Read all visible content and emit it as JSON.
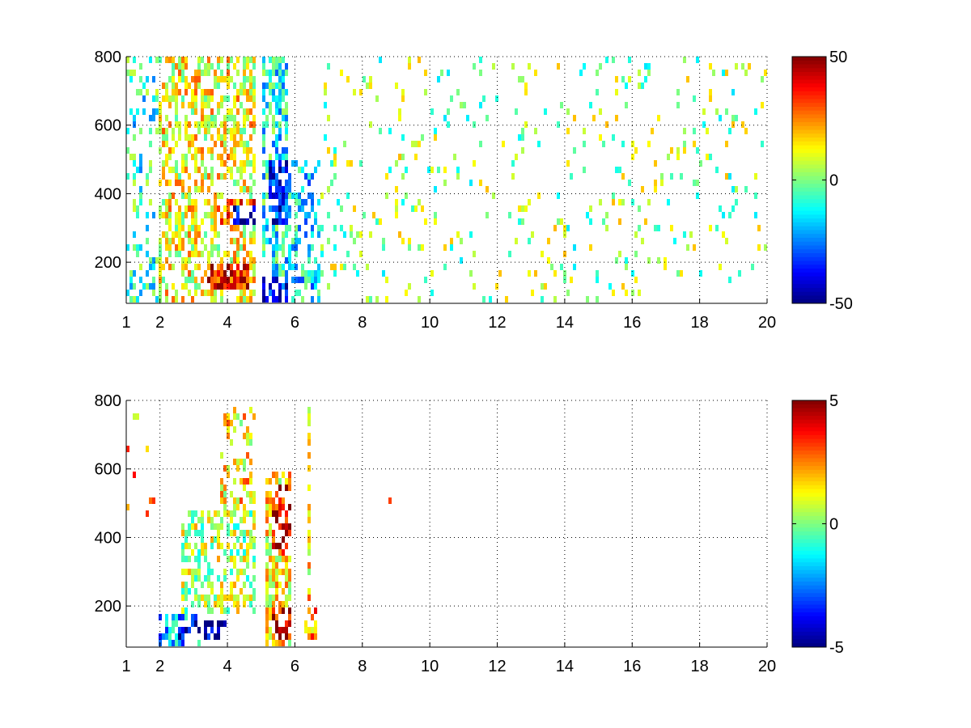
{
  "chart_data": [
    {
      "type": "heatmap",
      "title": "",
      "xlabel": "",
      "ylabel": "",
      "xlim": [
        1,
        20
      ],
      "ylim": [
        80,
        800
      ],
      "x_ticks": [
        1,
        2,
        4,
        6,
        8,
        10,
        12,
        14,
        16,
        18,
        20
      ],
      "y_ticks": [
        200,
        400,
        600,
        800
      ],
      "grid": true,
      "colorbar": {
        "placement": "right",
        "range": [
          -50,
          50
        ],
        "ticks": [
          -50,
          0,
          50
        ]
      },
      "colormap": "jet",
      "regions": [
        {
          "x": [
            1,
            2
          ],
          "y": [
            80,
            800
          ],
          "value": -8,
          "density": 0.25
        },
        {
          "x": [
            2,
            3.2
          ],
          "y": [
            80,
            220
          ],
          "value": 32,
          "density": 0.85
        },
        {
          "x": [
            2.4,
            3.6
          ],
          "y": [
            240,
            320
          ],
          "value": 30,
          "density": 0.85
        },
        {
          "x": [
            2,
            4.8
          ],
          "y": [
            80,
            800
          ],
          "value": 12,
          "density": 0.55
        },
        {
          "x": [
            3.4,
            4.6
          ],
          "y": [
            120,
            200
          ],
          "value": 38,
          "density": 0.85
        },
        {
          "x": [
            3.6,
            4.8
          ],
          "y": [
            300,
            380
          ],
          "value": 28,
          "density": 0.75
        },
        {
          "x": [
            4.2,
            4.8
          ],
          "y": [
            300,
            360
          ],
          "value": -40,
          "density": 0.7
        },
        {
          "x": [
            5,
            5.8
          ],
          "y": [
            80,
            800
          ],
          "value": -12,
          "density": 0.6
        },
        {
          "x": [
            5.2,
            5.9
          ],
          "y": [
            300,
            500
          ],
          "value": -35,
          "density": 0.7
        },
        {
          "x": [
            5,
            5.8
          ],
          "y": [
            90,
            160
          ],
          "value": -38,
          "density": 0.7
        },
        {
          "x": [
            5.8,
            6.8
          ],
          "y": [
            80,
            500
          ],
          "value": -15,
          "density": 0.4
        },
        {
          "x": [
            6.8,
            20
          ],
          "y": [
            80,
            800
          ],
          "value": 2,
          "density": 0.08
        }
      ]
    },
    {
      "type": "heatmap",
      "title": "",
      "xlabel": "",
      "ylabel": "",
      "xlim": [
        1,
        20
      ],
      "ylim": [
        80,
        800
      ],
      "x_ticks": [
        1,
        2,
        4,
        6,
        8,
        10,
        12,
        14,
        16,
        18,
        20
      ],
      "y_ticks": [
        200,
        400,
        600,
        800
      ],
      "grid": true,
      "colorbar": {
        "placement": "right",
        "range": [
          -5,
          5
        ],
        "ticks": [
          -5,
          0,
          5
        ]
      },
      "colormap": "jet",
      "regions": [
        {
          "x": [
            1,
            1.9
          ],
          "y": [
            100,
            800
          ],
          "value": 2,
          "density": 0.03
        },
        {
          "x": [
            2,
            3.2
          ],
          "y": [
            80,
            180
          ],
          "value": -2,
          "density": 0.7
        },
        {
          "x": [
            2.5,
            4
          ],
          "y": [
            100,
            150
          ],
          "value": -4.5,
          "density": 0.6
        },
        {
          "x": [
            2.6,
            4.8
          ],
          "y": [
            180,
            480
          ],
          "value": 0.5,
          "density": 0.5
        },
        {
          "x": [
            3.8,
            4.8
          ],
          "y": [
            480,
            780
          ],
          "value": 1.5,
          "density": 0.35
        },
        {
          "x": [
            5.1,
            5.9
          ],
          "y": [
            80,
            600
          ],
          "value": 1.5,
          "density": 0.75
        },
        {
          "x": [
            5.3,
            5.9
          ],
          "y": [
            350,
            550
          ],
          "value": 4,
          "density": 0.5
        },
        {
          "x": [
            5.3,
            5.9
          ],
          "y": [
            100,
            200
          ],
          "value": 4,
          "density": 0.55
        },
        {
          "x": [
            6.3,
            6.7
          ],
          "y": [
            100,
            200
          ],
          "value": 2.5,
          "density": 0.7
        },
        {
          "x": [
            6.35,
            6.5
          ],
          "y": [
            200,
            780
          ],
          "value": 1.5,
          "density": 0.55
        },
        {
          "x": [
            8.4,
            9
          ],
          "y": [
            500,
            520
          ],
          "value": 2,
          "density": 0.3
        }
      ]
    }
  ]
}
